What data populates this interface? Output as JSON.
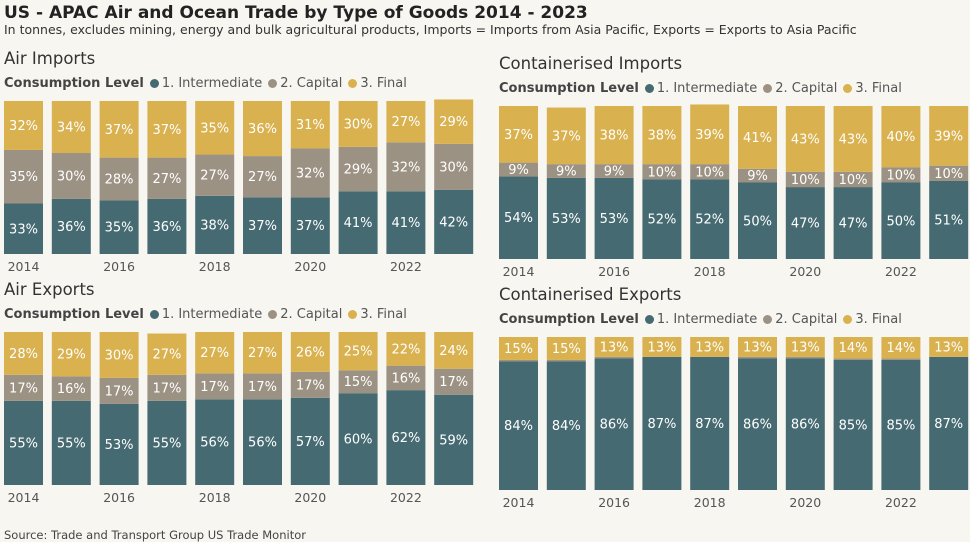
{
  "title": "US - APAC Air and Ocean Trade by Type of Goods 2014 - 2023",
  "subtitle": "In tonnes, excludes mining, energy and bulk agricultural products, Imports = Imports from Asia Pacific, Exports = Exports to Asia Pacific",
  "source": "Source: Trade and Transport Group US Trade Monitor",
  "colors": {
    "intermediate": "#456a72",
    "capital": "#9c9284",
    "final": "#d9b14f"
  },
  "legend": {
    "title": "Consumption Level",
    "items": [
      "1. Intermediate",
      "2. Capital",
      "3. Final"
    ]
  },
  "chart_data": [
    {
      "type": "bar",
      "stacked": true,
      "title": "Air Imports",
      "categories": [
        "2014",
        "2015",
        "2016",
        "2017",
        "2018",
        "2019",
        "2020",
        "2021",
        "2022",
        "2023"
      ],
      "x_tick_labels": [
        "2014",
        "",
        "2016",
        "",
        "2018",
        "",
        "2020",
        "",
        "2022",
        ""
      ],
      "ylim": [
        0,
        100
      ],
      "series": [
        {
          "name": "1. Intermediate",
          "values": [
            33,
            36,
            35,
            36,
            38,
            37,
            37,
            41,
            41,
            42
          ]
        },
        {
          "name": "2. Capital",
          "values": [
            35,
            30,
            28,
            27,
            27,
            27,
            32,
            29,
            32,
            30
          ]
        },
        {
          "name": "3. Final",
          "values": [
            32,
            34,
            37,
            37,
            35,
            36,
            31,
            30,
            27,
            29
          ]
        }
      ]
    },
    {
      "type": "bar",
      "stacked": true,
      "title": "Containerised Imports",
      "categories": [
        "2014",
        "2015",
        "2016",
        "2017",
        "2018",
        "2019",
        "2020",
        "2021",
        "2022",
        "2023"
      ],
      "x_tick_labels": [
        "2014",
        "",
        "2016",
        "",
        "2018",
        "",
        "2020",
        "",
        "2022",
        ""
      ],
      "ylim": [
        0,
        100
      ],
      "series": [
        {
          "name": "1. Intermediate",
          "values": [
            54,
            53,
            53,
            52,
            52,
            50,
            47,
            47,
            50,
            51
          ]
        },
        {
          "name": "2. Capital",
          "values": [
            9,
            9,
            9,
            10,
            10,
            9,
            10,
            10,
            10,
            10
          ]
        },
        {
          "name": "3. Final",
          "values": [
            37,
            37,
            38,
            38,
            39,
            41,
            43,
            43,
            40,
            39
          ]
        }
      ]
    },
    {
      "type": "bar",
      "stacked": true,
      "title": "Air Exports",
      "categories": [
        "2014",
        "2015",
        "2016",
        "2017",
        "2018",
        "2019",
        "2020",
        "2021",
        "2022",
        "2023"
      ],
      "x_tick_labels": [
        "2014",
        "",
        "2016",
        "",
        "2018",
        "",
        "2020",
        "",
        "2022",
        ""
      ],
      "ylim": [
        0,
        100
      ],
      "series": [
        {
          "name": "1. Intermediate",
          "values": [
            55,
            55,
            53,
            55,
            56,
            56,
            57,
            60,
            62,
            59
          ]
        },
        {
          "name": "2. Capital",
          "values": [
            17,
            16,
            17,
            17,
            17,
            17,
            17,
            15,
            16,
            17
          ]
        },
        {
          "name": "3. Final",
          "values": [
            28,
            29,
            30,
            27,
            27,
            27,
            26,
            25,
            22,
            24
          ]
        }
      ]
    },
    {
      "type": "bar",
      "stacked": true,
      "title": "Containerised Exports",
      "categories": [
        "2014",
        "2015",
        "2016",
        "2017",
        "2018",
        "2019",
        "2020",
        "2021",
        "2022",
        "2023"
      ],
      "x_tick_labels": [
        "2014",
        "",
        "2016",
        "",
        "2018",
        "",
        "2020",
        "",
        "2022",
        ""
      ],
      "ylim": [
        0,
        100
      ],
      "series": [
        {
          "name": "1. Intermediate",
          "values": [
            84,
            84,
            86,
            87,
            87,
            86,
            86,
            85,
            85,
            87
          ]
        },
        {
          "name": "2. Capital",
          "values": [
            1,
            1,
            1,
            0,
            0,
            1,
            1,
            1,
            1,
            0
          ]
        },
        {
          "name": "3. Final",
          "values": [
            15,
            15,
            13,
            13,
            13,
            13,
            13,
            14,
            14,
            13
          ]
        }
      ]
    }
  ]
}
